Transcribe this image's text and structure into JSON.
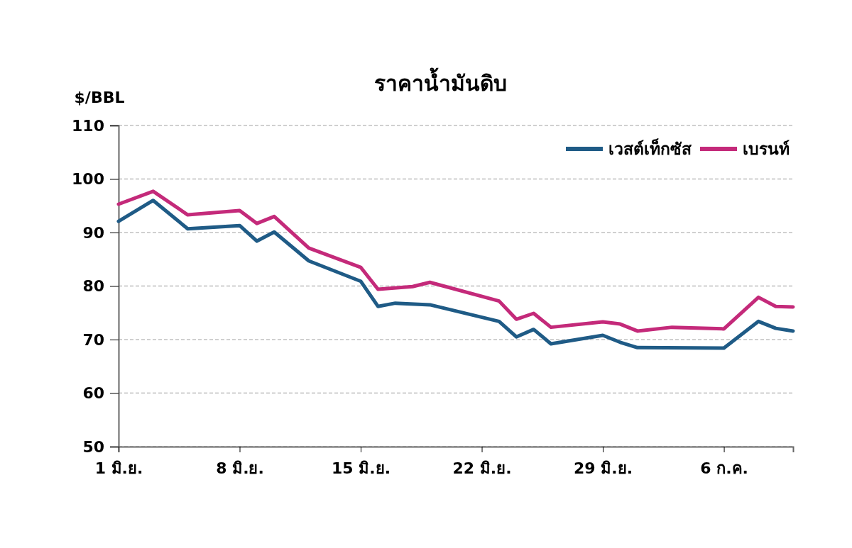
{
  "chart_data": {
    "type": "line",
    "title": "ราคาน้ำมันดิบ",
    "ylabel": "$/BBL",
    "xlim": [
      "--06-01",
      "--07-10"
    ],
    "xticks": [
      {
        "value": "--06-01",
        "label": "1 มิ.ย."
      },
      {
        "value": "--06-08",
        "label": "8 มิ.ย."
      },
      {
        "value": "--06-15",
        "label": "15 มิ.ย."
      },
      {
        "value": "--06-22",
        "label": "22 มิ.ย."
      },
      {
        "value": "--06-29",
        "label": "29 มิ.ย."
      },
      {
        "value": "--07-06",
        "label": "6 ก.ค."
      }
    ],
    "ylim": [
      50,
      110
    ],
    "yticks": [
      50,
      60,
      70,
      80,
      90,
      100,
      110
    ],
    "grid": "y",
    "legend": "top right",
    "line_style": "solid",
    "marker": "none",
    "series": [
      {
        "name": "เวสต์เท็กซัส",
        "color": "#1f5b86",
        "x": [
          "--06-01",
          "--06-03",
          "--06-05",
          "--06-08",
          "--06-09",
          "--06-10",
          "--06-12",
          "--06-15",
          "--06-16",
          "--06-17",
          "--06-19",
          "--06-23",
          "--06-24",
          "--06-25",
          "--06-26",
          "--06-29",
          "--06-30",
          "--07-01",
          "--07-06",
          "--07-08",
          "--07-09",
          "--07-10"
        ],
        "values": [
          92.1,
          96.0,
          90.7,
          91.3,
          88.4,
          90.1,
          84.7,
          80.9,
          76.2,
          76.8,
          76.5,
          73.4,
          70.5,
          71.9,
          69.2,
          70.8,
          69.5,
          68.5,
          68.4,
          73.4,
          72.1,
          71.6
        ]
      },
      {
        "name": "เบรนท์",
        "color": "#c42a7a",
        "x": [
          "--06-01",
          "--06-03",
          "--06-05",
          "--06-08",
          "--06-09",
          "--06-10",
          "--06-12",
          "--06-15",
          "--06-16",
          "--06-18",
          "--06-19",
          "--06-23",
          "--06-24",
          "--06-25",
          "--06-26",
          "--06-29",
          "--06-30",
          "--07-01",
          "--07-03",
          "--07-06",
          "--07-08",
          "--07-09",
          "--07-10"
        ],
        "values": [
          95.3,
          97.7,
          93.3,
          94.1,
          91.7,
          93.0,
          87.1,
          83.5,
          79.4,
          79.9,
          80.7,
          77.2,
          73.8,
          74.9,
          72.3,
          73.3,
          72.9,
          71.6,
          72.3,
          72.0,
          77.9,
          76.2,
          76.1
        ]
      }
    ]
  }
}
